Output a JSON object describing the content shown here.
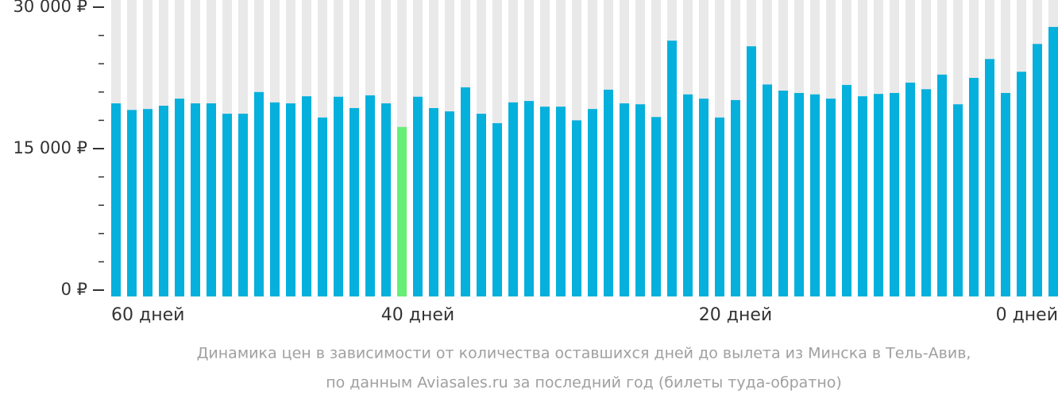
{
  "chart_data": {
    "type": "bar",
    "caption": [
      "Динамика цен в зависимости от количества оставшихся дней до вылета из Минска в Тель-Авив,",
      "по данным Aviasales.ru за последний год (билеты туда-обратно)"
    ],
    "categories": [
      "60 дней",
      null,
      null,
      null,
      null,
      null,
      null,
      null,
      null,
      null,
      null,
      null,
      null,
      null,
      null,
      null,
      null,
      null,
      null,
      "40 дней",
      null,
      null,
      null,
      null,
      null,
      null,
      null,
      null,
      null,
      null,
      null,
      null,
      null,
      null,
      null,
      null,
      null,
      null,
      null,
      "20 дней",
      null,
      null,
      null,
      null,
      null,
      null,
      null,
      null,
      null,
      null,
      null,
      null,
      null,
      null,
      null,
      null,
      null,
      null,
      null,
      "0 дней"
    ],
    "values": [
      19800,
      19100,
      19200,
      19550,
      20300,
      19800,
      19800,
      18700,
      18700,
      21000,
      19900,
      19800,
      20550,
      18300,
      20500,
      19300,
      20650,
      19800,
      17300,
      20500,
      19300,
      18950,
      21500,
      18700,
      17700,
      19900,
      20050,
      19450,
      19450,
      18000,
      19200,
      21250,
      19800,
      19700,
      18350,
      26450,
      20750,
      20300,
      18300,
      20150,
      25850,
      21800,
      21150,
      20900,
      20750,
      20300,
      21750,
      20550,
      20800,
      20900,
      22000,
      21300,
      22850,
      19700,
      22500,
      24500,
      20900,
      23150,
      26100,
      27900
    ],
    "color": "#06b0dc",
    "highlight_color": "#66ee77",
    "highlight_index": 18,
    "background_color": "#e9e9e9",
    "ylim": [
      0,
      30000
    ],
    "yticks": [
      {
        "value": 0,
        "label": "0 ₽"
      },
      {
        "value": 15000,
        "label": "15 000 ₽"
      },
      {
        "value": 30000,
        "label": "30 000 ₽"
      }
    ],
    "minor_yticks": [
      3000,
      6000,
      9000,
      12000,
      18000,
      21000,
      24000,
      27000
    ]
  }
}
